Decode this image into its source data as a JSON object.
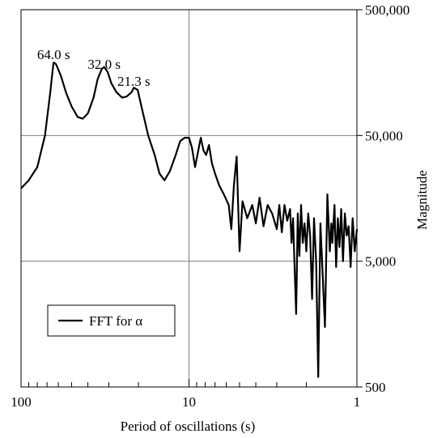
{
  "chart_data": {
    "type": "line",
    "xlabel": "Period of oscillations (s)",
    "ylabel": "Magnitude",
    "xscale": "log",
    "yscale": "log",
    "x_direction": "reversed",
    "xlim": [
      100,
      1
    ],
    "ylim": [
      500,
      500000
    ],
    "x_ticks": [
      100,
      10,
      1
    ],
    "x_tick_labels": [
      "100",
      "10",
      "1"
    ],
    "y_ticks": [
      500,
      5000,
      50000,
      500000
    ],
    "y_tick_labels": [
      "500",
      "5,000",
      "50,000",
      "500,000"
    ],
    "y_axis_side": "right",
    "grid": true,
    "legend": {
      "position": "bottom-left",
      "label": "FFT for α"
    },
    "annotations": [
      {
        "text": "64.0 s",
        "x": 64.0,
        "y": 180000
      },
      {
        "text": "32.0 s",
        "x": 32.0,
        "y": 150000
      },
      {
        "text": "21.3 s",
        "x": 21.3,
        "y": 110000
      }
    ],
    "series": [
      {
        "color": "#000000",
        "x": [
          100,
          90,
          80,
          72,
          67,
          65,
          64,
          62,
          58,
          54,
          50,
          46,
          43,
          40,
          37,
          35,
          33,
          32,
          30.5,
          29,
          27,
          25,
          23.5,
          22,
          21.3,
          20.2,
          19,
          17.5,
          16,
          15,
          14,
          13,
          12,
          11.3,
          10.6,
          10,
          9.6,
          9.2,
          8.8,
          8.5,
          8.2,
          7.9,
          7.6,
          7.3,
          7.0,
          6.6,
          6.2,
          5.8,
          5.6,
          5.4,
          5.2,
          5.0,
          4.8,
          4.5,
          4.2,
          4.0,
          3.8,
          3.6,
          3.4,
          3.2,
          3.0,
          2.9,
          2.8,
          2.7,
          2.6,
          2.5,
          2.45,
          2.4,
          2.35,
          2.3,
          2.25,
          2.2,
          2.15,
          2.1,
          2.05,
          2.0,
          1.95,
          1.9,
          1.85,
          1.8,
          1.75,
          1.7,
          1.65,
          1.6,
          1.55,
          1.5,
          1.45,
          1.42,
          1.4,
          1.36,
          1.33,
          1.3,
          1.27,
          1.24,
          1.21,
          1.18,
          1.15,
          1.12,
          1.09,
          1.06,
          1.03,
          1.0
        ],
        "values": [
          19000,
          22000,
          28000,
          50000,
          110000,
          160000,
          190000,
          185000,
          150000,
          110000,
          85000,
          70000,
          68000,
          75000,
          100000,
          140000,
          170000,
          175000,
          160000,
          130000,
          110000,
          100000,
          102000,
          110000,
          120000,
          115000,
          80000,
          50000,
          35000,
          25000,
          22000,
          26000,
          35000,
          45000,
          48000,
          48000,
          40000,
          28000,
          38000,
          48000,
          38000,
          35000,
          42000,
          30000,
          25000,
          20000,
          17000,
          14000,
          9000,
          20000,
          34000,
          6000,
          15000,
          11000,
          14000,
          10000,
          16000,
          9500,
          14000,
          12000,
          9000,
          14000,
          8500,
          14000,
          10500,
          13000,
          7000,
          11000,
          4500,
          1900,
          12000,
          5500,
          14000,
          7000,
          10000,
          6000,
          12000,
          8000,
          2500,
          11000,
          5000,
          600,
          10000,
          4000,
          1500,
          17000,
          6000,
          10000,
          7000,
          14000,
          4500,
          11000,
          6500,
          13000,
          5000,
          12000,
          8000,
          9500,
          4500,
          11000,
          6000,
          9000
        ]
      }
    ]
  }
}
